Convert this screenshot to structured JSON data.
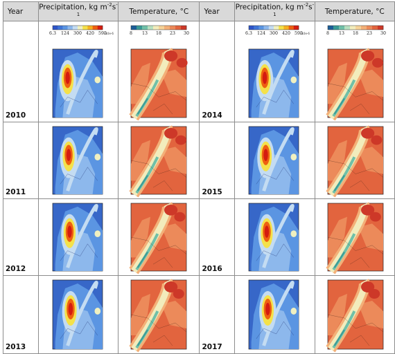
{
  "headers": {
    "year": "Year",
    "precip": "Precipitation, kg m",
    "precip_sup1": "-2",
    "precip_mid": "s",
    "precip_sup2": "-1",
    "temp": "Temperature, °C"
  },
  "precip_colorbar": {
    "ticks": [
      "6.3",
      "124",
      "300",
      "420",
      "595"
    ],
    "scale_note": "x10e-6",
    "colors": [
      "#2e55c8",
      "#3f75d8",
      "#5b95e2",
      "#8db8ec",
      "#c4dcf2",
      "#f0f0c0",
      "#f4e14a",
      "#f6b020",
      "#ee6010",
      "#d41c10"
    ]
  },
  "temp_colorbar": {
    "ticks": [
      "8",
      "13",
      "18",
      "23",
      "30"
    ],
    "colors": [
      "#1c5e98",
      "#3a9a96",
      "#70c0a8",
      "#b8e0c0",
      "#f2ecbc",
      "#f6d298",
      "#f3b078",
      "#ec8a5a",
      "#e2643e",
      "#cd3828"
    ]
  },
  "left_years": [
    "2010",
    "2011",
    "2012",
    "2013"
  ],
  "right_years": [
    "2014",
    "2015",
    "2016",
    "2017"
  ]
}
